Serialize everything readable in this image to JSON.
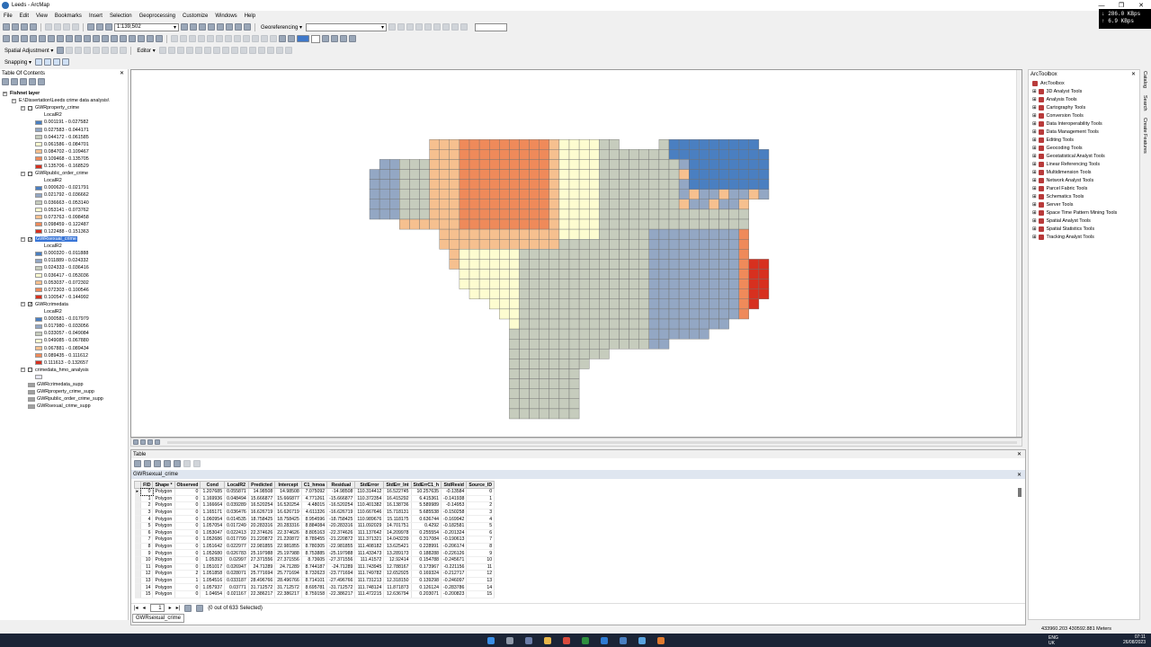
{
  "window": {
    "title": "Leeds - ArcMap"
  },
  "colors": {
    "class1": "#4a7fc1",
    "class2": "#93a7c4",
    "class3": "#c6ccbd",
    "class4": "#fdfcd0",
    "class5": "#f6c08f",
    "class6": "#ef8a5a",
    "class7": "#d7301f"
  },
  "menu": [
    "File",
    "Edit",
    "View",
    "Bookmarks",
    "Insert",
    "Selection",
    "Geoprocessing",
    "Customize",
    "Windows",
    "Help"
  ],
  "network": {
    "down": "↓ 286.0 KBps",
    "up": "↑ 6.9 KBps"
  },
  "toolbar": {
    "scale": "1:139,502",
    "georef_label": "Georeferencing ▾",
    "spatial_adj": "Spatial Adjustment ▾",
    "editor": "Editor ▾",
    "snapping": "Snapping ▾"
  },
  "toc": {
    "title": "Table Of Contents",
    "root": "Fishnet layer",
    "path": "E:\\Dissertation\\Leeds crime data analysis\\",
    "groups": [
      {
        "name": "GWRproperty_crime",
        "checked": false,
        "field": "LocalR2",
        "classes": [
          "0.001191 - 0.027582",
          "0.027583 - 0.044171",
          "0.044172 - 0.061585",
          "0.061586 - 0.084701",
          "0.084702 - 0.109467",
          "0.109468 - 0.135705",
          "0.135706 - 0.168529"
        ]
      },
      {
        "name": "GWRpublic_order_crime",
        "checked": false,
        "field": "LocalR2",
        "classes": [
          "0.000620 - 0.021791",
          "0.021792 - 0.036662",
          "0.036663 - 0.053140",
          "0.053141 - 0.073762",
          "0.073763 - 0.098458",
          "0.098459 - 0.122487",
          "0.122488 - 0.151363"
        ]
      },
      {
        "name": "GWRsexual_crime",
        "checked": true,
        "field": "LocalR2",
        "classes": [
          "0.000320 - 0.011888",
          "0.011889 - 0.024332",
          "0.024333 - 0.036416",
          "0.036417 - 0.053036",
          "0.053037 - 0.072302",
          "0.072303 - 0.100546",
          "0.100547 - 0.144992"
        ]
      },
      {
        "name": "GWRcrimedata",
        "checked": true,
        "field": "LocalR2",
        "classes": [
          "0.000581 - 0.017979",
          "0.017980 - 0.033056",
          "0.033057 - 0.049084",
          "0.049085 - 0.067880",
          "0.067881 - 0.089434",
          "0.089435 - 0.111612",
          "0.111613 - 0.132657"
        ]
      }
    ],
    "extra": "crimedata_hmo_analysis",
    "tables": [
      "GWRcrimedata_supp",
      "GWRproperty_crime_supp",
      "GWRpublic_order_crime_supp",
      "GWRsexual_crime_supp"
    ]
  },
  "arctoolbox": {
    "title": "ArcToolbox",
    "root": "ArcToolbox",
    "items": [
      "3D Analyst Tools",
      "Analysis Tools",
      "Cartography Tools",
      "Conversion Tools",
      "Data Interoperability Tools",
      "Data Management Tools",
      "Editing Tools",
      "Geocoding Tools",
      "Geostatistical Analyst Tools",
      "Linear Referencing Tools",
      "Multidimension Tools",
      "Network Analyst Tools",
      "Parcel Fabric Tools",
      "Schematics Tools",
      "Server Tools",
      "Space Time Pattern Mining Tools",
      "Spatial Analyst Tools",
      "Spatial Statistics Tools",
      "Tracking Analyst Tools"
    ],
    "side_tabs": [
      "Catalog",
      "Search",
      "Create Features"
    ]
  },
  "table": {
    "title": "Table",
    "tab": "GWRsexual_crime",
    "headers": [
      "FID",
      "Shape *",
      "Observed",
      "Cond",
      "LocalR2",
      "Predicted",
      "Intercept",
      "C1_hmoa",
      "Residual",
      "StdError",
      "StdErr_Int",
      "StdErrC1_h",
      "StdResid",
      "Source_ID"
    ],
    "rows": [
      [
        "0",
        "Polygon",
        "0",
        "1.207685",
        "0.055871",
        "14.98508",
        "14.98508",
        "7.075092",
        "-14.98508",
        "110.314412",
        "16.522745",
        "10.257635",
        "-0.13584",
        "0"
      ],
      [
        "1",
        "Polygon",
        "0",
        "1.169936",
        "0.048494",
        "15.666877",
        "15.666877",
        "4.771261",
        "-15.666877",
        "110.372354",
        "16.415292",
        "6.415361",
        "-0.141938",
        "1"
      ],
      [
        "2",
        "Polygon",
        "0",
        "1.166664",
        "0.039289",
        "16.520254",
        "16.520254",
        "4.48015",
        "-16.520254",
        "110.401382",
        "16.138736",
        "5.589989",
        "-0.14953",
        "2"
      ],
      [
        "3",
        "Polygon",
        "0",
        "1.165171",
        "0.036476",
        "16.626719",
        "16.626719",
        "4.611326",
        "-16.626719",
        "110.667646",
        "15.718131",
        "5.685538",
        "-0.150258",
        "3"
      ],
      [
        "4",
        "Polygon",
        "0",
        "1.060954",
        "0.014535",
        "18.758425",
        "18.758425",
        "8.954596",
        "-18.758425",
        "110.989676",
        "15.118175",
        "0.636744",
        "-0.169942",
        "4"
      ],
      [
        "5",
        "Polygon",
        "0",
        "1.057054",
        "0.017249",
        "20.283316",
        "20.283316",
        "8.884084",
        "-20.283316",
        "111.092029",
        "14.701751",
        "0.4292",
        "-0.182581",
        "5"
      ],
      [
        "6",
        "Polygon",
        "0",
        "1.053047",
        "0.022413",
        "22.374626",
        "22.374626",
        "8.805163",
        "-22.374626",
        "111.137642",
        "14.209978",
        "0.255554",
        "-0.201324",
        "6"
      ],
      [
        "7",
        "Polygon",
        "0",
        "1.052686",
        "0.017799",
        "21.220872",
        "21.220872",
        "8.789455",
        "-21.220872",
        "111.371321",
        "14.043239",
        "0.317084",
        "-0.190613",
        "7"
      ],
      [
        "8",
        "Polygon",
        "0",
        "1.051642",
        "0.022977",
        "22.981855",
        "22.981855",
        "8.780305",
        "-22.981855",
        "111.408182",
        "13.625421",
        "0.228991",
        "-0.206174",
        "8"
      ],
      [
        "9",
        "Polygon",
        "0",
        "1.052680",
        "0.026783",
        "25.197988",
        "25.197988",
        "8.753885",
        "-25.197988",
        "111.433473",
        "13.289173",
        "0.188288",
        "-0.226126",
        "9"
      ],
      [
        "10",
        "Polygon",
        "0",
        "1.05393",
        "0.02997",
        "27.371556",
        "27.371556",
        "8.73605",
        "-27.371556",
        "111.41572",
        "12.92414",
        "0.154788",
        "-0.245671",
        "10"
      ],
      [
        "11",
        "Polygon",
        "0",
        "1.051017",
        "0.026947",
        "24.71289",
        "24.71289",
        "8.744187",
        "-24.71289",
        "111.743945",
        "12.788167",
        "0.173967",
        "-0.221156",
        "11"
      ],
      [
        "12",
        "Polygon",
        "2",
        "1.051858",
        "0.028071",
        "25.771694",
        "25.771694",
        "8.732623",
        "-23.771694",
        "111.749782",
        "12.652925",
        "0.169324",
        "-0.212717",
        "12"
      ],
      [
        "13",
        "Polygon",
        "1",
        "1.054516",
        "0.033187",
        "28.496766",
        "28.496766",
        "8.714101",
        "-27.496766",
        "111.731213",
        "12.318150",
        "0.139298",
        "-0.246097",
        "13"
      ],
      [
        "14",
        "Polygon",
        "0",
        "1.057937",
        "0.03771",
        "31.712572",
        "31.712572",
        "8.695781",
        "-31.712572",
        "111.748124",
        "11.871873",
        "0.126124",
        "-0.283786",
        "14"
      ],
      [
        "15",
        "Polygon",
        "0",
        "1.04654",
        "0.021167",
        "22.386217",
        "22.386217",
        "8.759158",
        "-22.386217",
        "111.472215",
        "12.636794",
        "0.203071",
        "-0.200823",
        "15"
      ]
    ],
    "record_nav": "1",
    "selected_info": "(0 out of 633 Selected)"
  },
  "status": {
    "coords": "433960.203  430592.881 Meters"
  },
  "clock": {
    "time": "07:11",
    "date": "26/08/2023",
    "lang": "ENG",
    "region": "UK"
  }
}
